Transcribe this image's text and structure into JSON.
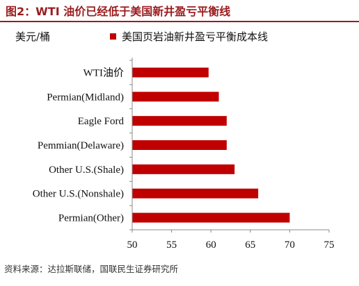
{
  "title": "图2：WTI 油价已经低于美国新井盈亏平衡线",
  "unit_label": "美元/桶",
  "source": "资料来源：达拉斯联储，国联民生证券研究所",
  "chart_data": {
    "type": "bar",
    "orientation": "horizontal",
    "categories": [
      "WTI油价",
      "Permian(Midland)",
      "Eagle Ford",
      "Pemmian(Delaware)",
      "Other U.S.(Shale)",
      "Other U.S.(Nonshale)",
      "Permian(Other)"
    ],
    "series": [
      {
        "name": "美国页岩油新井盈亏平衡成本线",
        "values": [
          59.7,
          61,
          62,
          62,
          63,
          66,
          70
        ],
        "color": "#c00000"
      }
    ],
    "xlim": [
      50,
      75
    ],
    "xticks": [
      50,
      55,
      60,
      65,
      70,
      75
    ],
    "legend_position": "top",
    "grid": false
  }
}
